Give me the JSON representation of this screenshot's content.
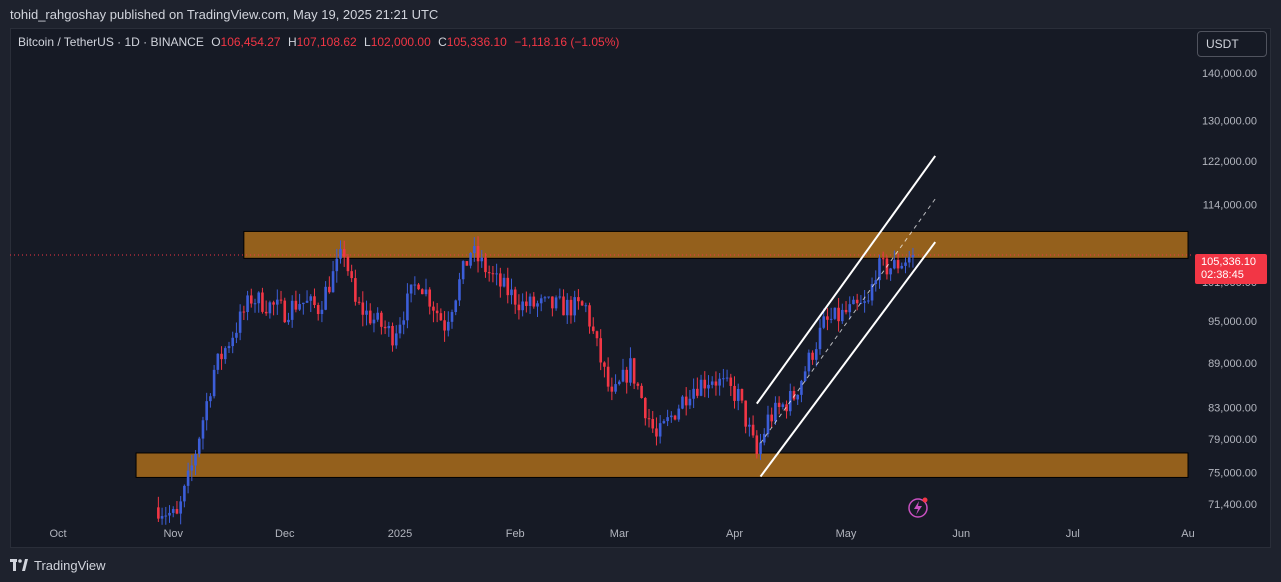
{
  "header": {
    "published_text": "tohid_rahgoshay published on TradingView.com, May 19, 2025 21:21 UTC"
  },
  "legend": {
    "symbol": "Bitcoin / TetherUS · 1D · BINANCE",
    "open_label": "O",
    "open": "106,454.27",
    "high_label": "H",
    "high": "107,108.62",
    "low_label": "L",
    "low": "102,000.00",
    "close_label": "C",
    "close": "105,336.10",
    "change": "−1,118.16 (−1.05%)"
  },
  "currency": "USDT",
  "last_price": {
    "price": "105,336.10",
    "countdown": "02:38:45"
  },
  "footer": {
    "brand": "TradingView"
  },
  "colors": {
    "up": "#3c5ed8",
    "down": "#f23645",
    "zone": "#b8741a",
    "background": "#161a25",
    "channel": "#ffffff"
  },
  "chart_data": {
    "type": "candlestick",
    "symbol": "BTCUSDT",
    "timeframe": "1D",
    "y_scale": "log",
    "ylim": [
      69500,
      150000
    ],
    "xlim": [
      "2024-10-01",
      "2025-08-01"
    ],
    "y_ticks": [
      {
        "value": 140000,
        "label": "140,000.00"
      },
      {
        "value": 130000,
        "label": "130,000.00"
      },
      {
        "value": 122000,
        "label": "122,000.00"
      },
      {
        "value": 114000,
        "label": "114,000.00"
      },
      {
        "value": 101000,
        "label": "101,000.00"
      },
      {
        "value": 95000,
        "label": "95,000.00"
      },
      {
        "value": 89000,
        "label": "89,000.00"
      },
      {
        "value": 83000,
        "label": "83,000.00"
      },
      {
        "value": 79000,
        "label": "79,000.00"
      },
      {
        "value": 75000,
        "label": "75,000.00"
      },
      {
        "value": 71400,
        "label": "71,400.00"
      }
    ],
    "x_ticks": [
      {
        "date": "2024-10-01",
        "label": "Oct"
      },
      {
        "date": "2024-11-01",
        "label": "Nov"
      },
      {
        "date": "2024-12-01",
        "label": "Dec"
      },
      {
        "date": "2025-01-01",
        "label": "2025"
      },
      {
        "date": "2025-02-01",
        "label": "Feb"
      },
      {
        "date": "2025-03-01",
        "label": "Mar"
      },
      {
        "date": "2025-04-01",
        "label": "Apr"
      },
      {
        "date": "2025-05-01",
        "label": "May"
      },
      {
        "date": "2025-06-01",
        "label": "Jun"
      },
      {
        "date": "2025-07-01",
        "label": "Jul"
      },
      {
        "date": "2025-08-01",
        "label": "Au"
      }
    ],
    "last_price": 105336.1,
    "anchors": [
      {
        "date": "2024-10-28",
        "price": 71000
      },
      {
        "date": "2024-11-02",
        "price": 69800
      },
      {
        "date": "2024-11-06",
        "price": 75600
      },
      {
        "date": "2024-11-12",
        "price": 88000
      },
      {
        "date": "2024-11-22",
        "price": 98500
      },
      {
        "date": "2024-12-01",
        "price": 96500
      },
      {
        "date": "2024-12-05",
        "price": 98000
      },
      {
        "date": "2024-12-10",
        "price": 97000
      },
      {
        "date": "2024-12-17",
        "price": 106000
      },
      {
        "date": "2024-12-20",
        "price": 97500
      },
      {
        "date": "2024-12-30",
        "price": 93000
      },
      {
        "date": "2025-01-06",
        "price": 101500
      },
      {
        "date": "2025-01-13",
        "price": 94500
      },
      {
        "date": "2025-01-20",
        "price": 106000
      },
      {
        "date": "2025-01-27",
        "price": 101000
      },
      {
        "date": "2025-02-03",
        "price": 97500
      },
      {
        "date": "2025-02-20",
        "price": 97000
      },
      {
        "date": "2025-02-27",
        "price": 84000
      },
      {
        "date": "2025-03-04",
        "price": 88500
      },
      {
        "date": "2025-03-11",
        "price": 79000
      },
      {
        "date": "2025-03-20",
        "price": 85500
      },
      {
        "date": "2025-03-26",
        "price": 87000
      },
      {
        "date": "2025-04-02",
        "price": 84500
      },
      {
        "date": "2025-04-07",
        "price": 77000
      },
      {
        "date": "2025-04-10",
        "price": 81500
      },
      {
        "date": "2025-04-17",
        "price": 84500
      },
      {
        "date": "2025-04-25",
        "price": 94500
      },
      {
        "date": "2025-05-02",
        "price": 96500
      },
      {
        "date": "2025-05-07",
        "price": 97500
      },
      {
        "date": "2025-05-09",
        "price": 103000
      },
      {
        "date": "2025-05-14",
        "price": 103500
      },
      {
        "date": "2025-05-19",
        "price": 105336
      }
    ],
    "zones": [
      {
        "from": "2024-11-20",
        "to": "2025-08-01",
        "bottom": 104800,
        "top": 109300
      },
      {
        "from": "2024-10-22",
        "to": "2025-08-01",
        "bottom": 74400,
        "top": 77300
      }
    ],
    "channel": {
      "upper": [
        {
          "date": "2025-04-07",
          "price": 83500
        },
        {
          "date": "2025-05-25",
          "price": 123000
        }
      ],
      "lower": [
        {
          "date": "2025-04-08",
          "price": 74500
        },
        {
          "date": "2025-05-25",
          "price": 107500
        }
      ],
      "middle": [
        {
          "date": "2025-04-08",
          "price": 78500
        },
        {
          "date": "2025-05-25",
          "price": 115000
        }
      ]
    }
  }
}
